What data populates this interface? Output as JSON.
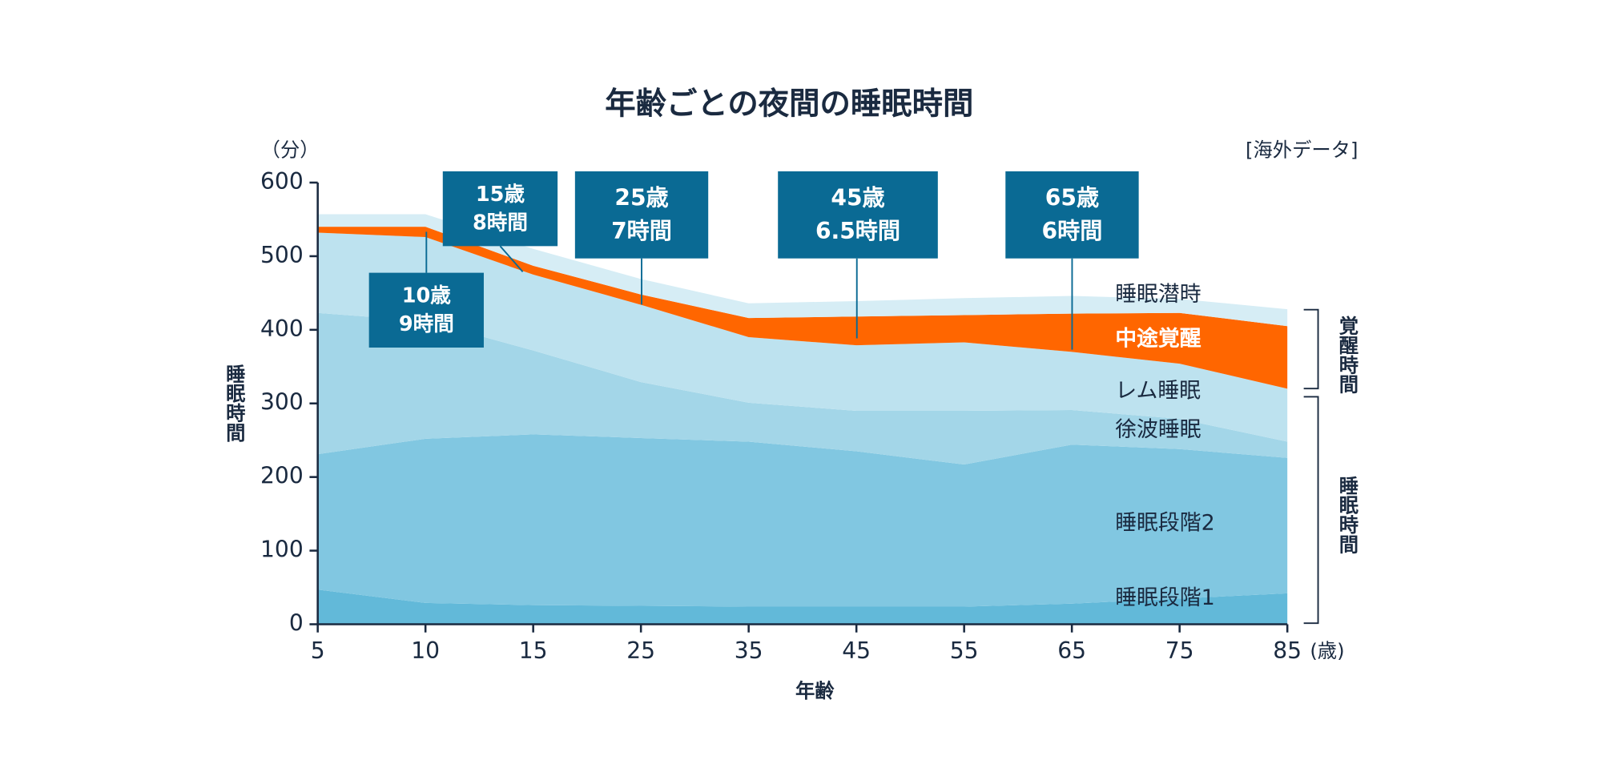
{
  "chart_data": {
    "type": "stacked_area",
    "title": "年齢ごとの夜間の睡眠時間",
    "y_unit": "（分）",
    "source_note": "[海外データ]",
    "y_label": "睡眠時間",
    "x_label": "年齢",
    "x_unit": "(歳)",
    "categories": [
      "5",
      "10",
      "15",
      "25",
      "35",
      "45",
      "55",
      "65",
      "75",
      "85"
    ],
    "series": [
      {
        "name": "睡眠段階1",
        "color": "#62b9d9",
        "values": [
          47,
          29,
          26,
          25,
          24,
          24,
          24,
          28,
          35,
          42
        ]
      },
      {
        "name": "睡眠段階2",
        "color": "#81c7e1",
        "values": [
          184,
          223,
          232,
          228,
          224,
          211,
          193,
          216,
          203,
          184
        ]
      },
      {
        "name": "徐波睡眠",
        "color": "#a3d6e8",
        "values": [
          192,
          160,
          114,
          76,
          53,
          55,
          73,
          47,
          41,
          22
        ]
      },
      {
        "name": "レム睡眠",
        "color": "#bde2ef",
        "values": [
          109,
          114,
          103,
          105,
          89,
          89,
          93,
          79,
          75,
          72
        ]
      },
      {
        "name": "中途覚醒",
        "color": "#ff6600",
        "values": [
          8,
          14,
          12,
          14,
          26,
          39,
          37,
          52,
          69,
          85
        ]
      },
      {
        "name": "睡眠潜時",
        "color": "#d6edf5",
        "values": [
          17,
          17,
          23,
          21,
          20,
          21,
          23,
          24,
          19,
          23
        ]
      }
    ],
    "ylim": [
      0,
      600
    ],
    "yticks": [
      0,
      100,
      200,
      300,
      400,
      500,
      600
    ],
    "callouts": [
      {
        "age": "10歳",
        "hours": "9時間"
      },
      {
        "age": "15歳",
        "hours": "8時間"
      },
      {
        "age": "25歳",
        "hours": "7時間"
      },
      {
        "age": "45歳",
        "hours": "6.5時間"
      },
      {
        "age": "65歳",
        "hours": "6時間"
      }
    ],
    "brackets": [
      "覚醒時間",
      "睡眠時間"
    ]
  }
}
